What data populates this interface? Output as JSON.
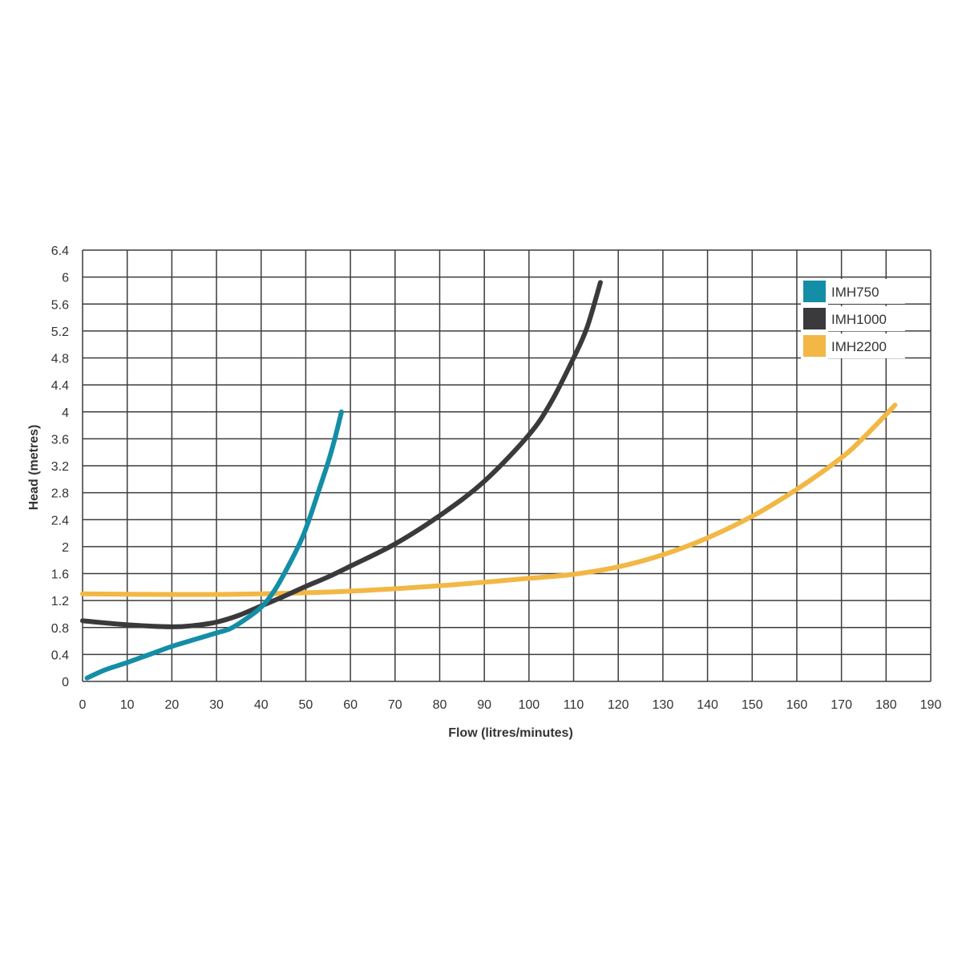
{
  "chart_data": {
    "type": "line",
    "title": "",
    "xlabel": "Flow (litres/minutes)",
    "ylabel": "Head (metres)",
    "xlim": [
      0,
      190
    ],
    "ylim": [
      0,
      6.4
    ],
    "x_ticks": [
      0,
      10,
      20,
      30,
      40,
      50,
      60,
      70,
      80,
      90,
      100,
      110,
      120,
      130,
      140,
      150,
      160,
      170,
      180,
      190
    ],
    "x_tick_labels": [
      "0",
      "10",
      "20",
      "30",
      "40",
      "50",
      "60",
      "70",
      "80",
      "90",
      "100",
      "110",
      "120",
      "130",
      "140",
      "150",
      "160",
      "170",
      "180",
      "190"
    ],
    "y_ticks": [
      0,
      0.4,
      0.8,
      1.2,
      1.6,
      2,
      2.4,
      2.8,
      3.2,
      3.6,
      4,
      4.4,
      4.8,
      5.2,
      5.6,
      6,
      6.4
    ],
    "y_tick_labels": [
      "0",
      "0.4",
      "0.8",
      "1.2",
      "1.6",
      "2",
      "2.4",
      "2.8",
      "3.2",
      "3.6",
      "4",
      "4.4",
      "4.8",
      "5.2",
      "5.6",
      "6",
      "6.4"
    ],
    "grid": true,
    "legend_position": "top-right",
    "series": [
      {
        "name": "IMH750",
        "color": "#148ea6",
        "points": [
          [
            1,
            0.05
          ],
          [
            5,
            0.17
          ],
          [
            10,
            0.28
          ],
          [
            15,
            0.4
          ],
          [
            20,
            0.52
          ],
          [
            25,
            0.62
          ],
          [
            30,
            0.72
          ],
          [
            33,
            0.78
          ],
          [
            36,
            0.9
          ],
          [
            40,
            1.1
          ],
          [
            43,
            1.35
          ],
          [
            46,
            1.7
          ],
          [
            49,
            2.1
          ],
          [
            51,
            2.45
          ],
          [
            53,
            2.85
          ],
          [
            55,
            3.25
          ],
          [
            56.5,
            3.6
          ],
          [
            58,
            4.0
          ]
        ]
      },
      {
        "name": "IMH1000",
        "color": "#3a3a3c",
        "points": [
          [
            0,
            0.9
          ],
          [
            10,
            0.84
          ],
          [
            20,
            0.81
          ],
          [
            25,
            0.83
          ],
          [
            30,
            0.88
          ],
          [
            35,
            0.98
          ],
          [
            40,
            1.12
          ],
          [
            45,
            1.26
          ],
          [
            50,
            1.41
          ],
          [
            55,
            1.55
          ],
          [
            60,
            1.71
          ],
          [
            70,
            2.04
          ],
          [
            80,
            2.46
          ],
          [
            90,
            2.97
          ],
          [
            100,
            3.66
          ],
          [
            105,
            4.15
          ],
          [
            110,
            4.8
          ],
          [
            113,
            5.25
          ],
          [
            116,
            5.92
          ]
        ]
      },
      {
        "name": "IMH2200",
        "color": "#f2b744",
        "points": [
          [
            0,
            1.3
          ],
          [
            20,
            1.29
          ],
          [
            40,
            1.3
          ],
          [
            60,
            1.34
          ],
          [
            80,
            1.42
          ],
          [
            100,
            1.53
          ],
          [
            110,
            1.59
          ],
          [
            120,
            1.7
          ],
          [
            130,
            1.88
          ],
          [
            140,
            2.13
          ],
          [
            150,
            2.45
          ],
          [
            160,
            2.85
          ],
          [
            170,
            3.32
          ],
          [
            175,
            3.62
          ],
          [
            182,
            4.1
          ]
        ]
      }
    ]
  }
}
